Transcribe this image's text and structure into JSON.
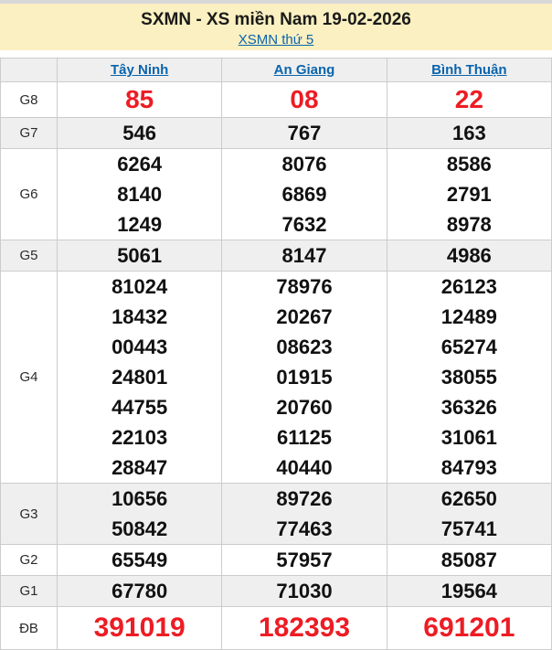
{
  "header": {
    "title": "SXMN - XS miền Nam 19-02-2026",
    "subtitle_link": "XSMN thứ 5"
  },
  "table": {
    "columns": [
      "Tây Ninh",
      "An Giang",
      "Bình Thuận"
    ],
    "rows": [
      {
        "label": "G8",
        "highlight": true,
        "values": [
          [
            "85"
          ],
          [
            "08"
          ],
          [
            "22"
          ]
        ]
      },
      {
        "label": "G7",
        "values": [
          [
            "546"
          ],
          [
            "767"
          ],
          [
            "163"
          ]
        ]
      },
      {
        "label": "G6",
        "values": [
          [
            "6264",
            "8140",
            "1249"
          ],
          [
            "8076",
            "6869",
            "7632"
          ],
          [
            "8586",
            "2791",
            "8978"
          ]
        ]
      },
      {
        "label": "G5",
        "values": [
          [
            "5061"
          ],
          [
            "8147"
          ],
          [
            "4986"
          ]
        ]
      },
      {
        "label": "G4",
        "values": [
          [
            "81024",
            "18432",
            "00443",
            "24801",
            "44755",
            "22103",
            "28847"
          ],
          [
            "78976",
            "20267",
            "08623",
            "01915",
            "20760",
            "61125",
            "40440"
          ],
          [
            "26123",
            "12489",
            "65274",
            "38055",
            "36326",
            "31061",
            "84793"
          ]
        ]
      },
      {
        "label": "G3",
        "values": [
          [
            "10656",
            "50842"
          ],
          [
            "89726",
            "77463"
          ],
          [
            "62650",
            "75741"
          ]
        ]
      },
      {
        "label": "G2",
        "values": [
          [
            "65549"
          ],
          [
            "57957"
          ],
          [
            "85087"
          ]
        ]
      },
      {
        "label": "G1",
        "values": [
          [
            "67780"
          ],
          [
            "71030"
          ],
          [
            "19564"
          ]
        ]
      },
      {
        "label": "ĐB",
        "highlight": true,
        "values": [
          [
            "391019"
          ],
          [
            "182393"
          ],
          [
            "691201"
          ]
        ]
      }
    ]
  },
  "colors": {
    "banner_yellow": "#fbf0c1",
    "link_blue": "#0a64ad",
    "highlight_red": "#ed1c24",
    "zebra_gray": "#efefef",
    "border_gray": "#cccccc"
  }
}
